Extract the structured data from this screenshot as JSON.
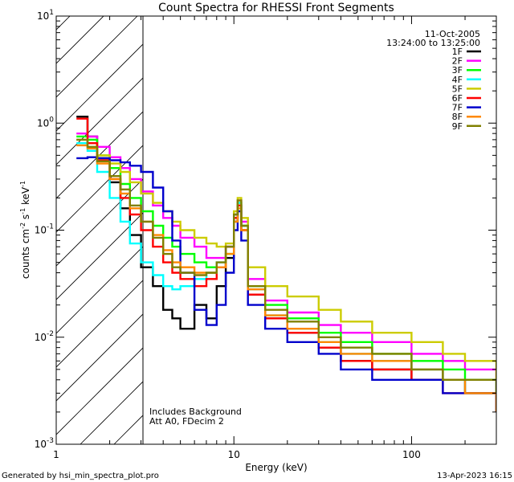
{
  "chart_data": {
    "type": "line",
    "title": "Count Spectra for RHESSI Front Segments",
    "xlabel": "Energy (keV)",
    "ylabel_main": "counts cm",
    "ylabel_exp1": "-2",
    "ylabel_mid": " s",
    "ylabel_exp2": "-1",
    "ylabel_tail": " keV",
    "ylabel_exp3": "-1",
    "xscale": "log",
    "yscale": "log",
    "xlim": [
      1,
      300
    ],
    "ylim": [
      0.001,
      10
    ],
    "xticks": [
      {
        "value": 1,
        "label": "1"
      },
      {
        "value": 10,
        "label": "10"
      },
      {
        "value": 100,
        "label": "100"
      }
    ],
    "yticks": [
      {
        "value": 0.001,
        "base": "10",
        "exp": "-3"
      },
      {
        "value": 0.01,
        "base": "10",
        "exp": "-2"
      },
      {
        "value": 0.1,
        "base": "10",
        "exp": "-1"
      },
      {
        "value": 1,
        "base": "10",
        "exp": "0"
      },
      {
        "value": 10,
        "base": "10",
        "exp": "1"
      }
    ],
    "shaded_region": {
      "x_from": 1,
      "x_to": 3,
      "style": "hatched"
    },
    "date": "11-Oct-2005",
    "time_range": "13:24:00 to 13:25:00",
    "annotations": [
      "Includes Background",
      "Att A0, FDecim 2"
    ],
    "footer_left": "Generated by hsi_min_spectra_plot.pro",
    "footer_right": "13-Apr-2023 16:15",
    "legend_position": "top-right",
    "series": [
      {
        "name": "1F",
        "color": "#000000",
        "values": [
          [
            1.3,
            1.15
          ],
          [
            1.5,
            0.75
          ],
          [
            1.7,
            0.47
          ],
          [
            2.0,
            0.28
          ],
          [
            2.3,
            0.16
          ],
          [
            2.6,
            0.09
          ],
          [
            3.0,
            0.045
          ],
          [
            3.5,
            0.03
          ],
          [
            4.0,
            0.018
          ],
          [
            4.5,
            0.015
          ],
          [
            5.0,
            0.012
          ],
          [
            6.0,
            0.02
          ],
          [
            7.0,
            0.015
          ],
          [
            8.0,
            0.03
          ],
          [
            9.0,
            0.055
          ],
          [
            10.0,
            0.12
          ],
          [
            10.5,
            0.17
          ],
          [
            11.0,
            0.1
          ],
          [
            12.0,
            0.025
          ],
          [
            15,
            0.015
          ],
          [
            20,
            0.011
          ],
          [
            30,
            0.008
          ],
          [
            40,
            0.006
          ],
          [
            60,
            0.005
          ],
          [
            100,
            0.004
          ],
          [
            150,
            0.004
          ],
          [
            200,
            0.003
          ],
          [
            300,
            0.002
          ]
        ]
      },
      {
        "name": "2F",
        "color": "#ff00ff",
        "values": [
          [
            1.3,
            0.8
          ],
          [
            1.5,
            0.75
          ],
          [
            1.7,
            0.6
          ],
          [
            2.0,
            0.48
          ],
          [
            2.3,
            0.38
          ],
          [
            2.6,
            0.3
          ],
          [
            3.0,
            0.23
          ],
          [
            3.5,
            0.17
          ],
          [
            4.0,
            0.13
          ],
          [
            4.5,
            0.11
          ],
          [
            5.0,
            0.085
          ],
          [
            6.0,
            0.07
          ],
          [
            7.0,
            0.055
          ],
          [
            8.0,
            0.055
          ],
          [
            9.0,
            0.07
          ],
          [
            10.0,
            0.14
          ],
          [
            10.5,
            0.19
          ],
          [
            11.0,
            0.12
          ],
          [
            12.0,
            0.035
          ],
          [
            15,
            0.022
          ],
          [
            20,
            0.017
          ],
          [
            30,
            0.013
          ],
          [
            40,
            0.011
          ],
          [
            60,
            0.009
          ],
          [
            100,
            0.007
          ],
          [
            150,
            0.006
          ],
          [
            200,
            0.005
          ],
          [
            300,
            0.003
          ]
        ]
      },
      {
        "name": "3F",
        "color": "#00ff00",
        "values": [
          [
            1.3,
            0.75
          ],
          [
            1.5,
            0.7
          ],
          [
            1.7,
            0.5
          ],
          [
            2.0,
            0.38
          ],
          [
            2.3,
            0.27
          ],
          [
            2.6,
            0.2
          ],
          [
            3.0,
            0.15
          ],
          [
            3.5,
            0.11
          ],
          [
            4.0,
            0.085
          ],
          [
            4.5,
            0.07
          ],
          [
            5.0,
            0.06
          ],
          [
            6.0,
            0.05
          ],
          [
            7.0,
            0.045
          ],
          [
            8.0,
            0.045
          ],
          [
            9.0,
            0.06
          ],
          [
            10.0,
            0.13
          ],
          [
            10.5,
            0.18
          ],
          [
            11.0,
            0.11
          ],
          [
            12.0,
            0.03
          ],
          [
            15,
            0.02
          ],
          [
            20,
            0.015
          ],
          [
            30,
            0.011
          ],
          [
            40,
            0.009
          ],
          [
            60,
            0.007
          ],
          [
            100,
            0.006
          ],
          [
            150,
            0.005
          ],
          [
            200,
            0.004
          ],
          [
            300,
            0.003
          ]
        ]
      },
      {
        "name": "4F",
        "color": "#00ffff",
        "values": [
          [
            1.3,
            0.65
          ],
          [
            1.5,
            0.55
          ],
          [
            1.7,
            0.35
          ],
          [
            2.0,
            0.2
          ],
          [
            2.3,
            0.12
          ],
          [
            2.6,
            0.075
          ],
          [
            3.0,
            0.05
          ],
          [
            3.5,
            0.038
          ],
          [
            4.0,
            0.03
          ],
          [
            4.5,
            0.028
          ],
          [
            5.0,
            0.03
          ],
          [
            6.0,
            0.035
          ],
          [
            7.0,
            0.04
          ],
          [
            8.0,
            0.05
          ],
          [
            9.0,
            0.07
          ],
          [
            10.0,
            0.14
          ],
          [
            10.5,
            0.18
          ],
          [
            11.0,
            0.11
          ],
          [
            12.0,
            0.028
          ],
          [
            15,
            0.016
          ],
          [
            20,
            0.012
          ],
          [
            30,
            0.009
          ],
          [
            40,
            0.007
          ],
          [
            60,
            0.006
          ],
          [
            100,
            0.005
          ],
          [
            150,
            0.004
          ],
          [
            200,
            0.003
          ],
          [
            300,
            0.002
          ]
        ]
      },
      {
        "name": "5F",
        "color": "#cccc00",
        "values": [
          [
            1.3,
            0.7
          ],
          [
            1.5,
            0.65
          ],
          [
            1.7,
            0.5
          ],
          [
            2.0,
            0.42
          ],
          [
            2.3,
            0.35
          ],
          [
            2.6,
            0.28
          ],
          [
            3.0,
            0.22
          ],
          [
            3.5,
            0.18
          ],
          [
            4.0,
            0.15
          ],
          [
            4.5,
            0.12
          ],
          [
            5.0,
            0.1
          ],
          [
            6.0,
            0.085
          ],
          [
            7.0,
            0.075
          ],
          [
            8.0,
            0.07
          ],
          [
            9.0,
            0.075
          ],
          [
            10.0,
            0.15
          ],
          [
            10.5,
            0.2
          ],
          [
            11.0,
            0.13
          ],
          [
            12.0,
            0.045
          ],
          [
            15,
            0.03
          ],
          [
            20,
            0.024
          ],
          [
            30,
            0.018
          ],
          [
            40,
            0.014
          ],
          [
            60,
            0.011
          ],
          [
            100,
            0.009
          ],
          [
            150,
            0.007
          ],
          [
            200,
            0.006
          ],
          [
            300,
            0.004
          ]
        ]
      },
      {
        "name": "6F",
        "color": "#ff0000",
        "values": [
          [
            1.3,
            1.1
          ],
          [
            1.5,
            0.65
          ],
          [
            1.7,
            0.45
          ],
          [
            2.0,
            0.3
          ],
          [
            2.3,
            0.2
          ],
          [
            2.6,
            0.14
          ],
          [
            3.0,
            0.1
          ],
          [
            3.5,
            0.07
          ],
          [
            4.0,
            0.05
          ],
          [
            4.5,
            0.04
          ],
          [
            5.0,
            0.035
          ],
          [
            6.0,
            0.03
          ],
          [
            7.0,
            0.035
          ],
          [
            8.0,
            0.045
          ],
          [
            9.0,
            0.07
          ],
          [
            10.0,
            0.13
          ],
          [
            10.5,
            0.17
          ],
          [
            11.0,
            0.1
          ],
          [
            12.0,
            0.025
          ],
          [
            15,
            0.015
          ],
          [
            20,
            0.011
          ],
          [
            30,
            0.008
          ],
          [
            40,
            0.006
          ],
          [
            60,
            0.005
          ],
          [
            100,
            0.004
          ],
          [
            150,
            0.003
          ],
          [
            200,
            0.003
          ],
          [
            300,
            0.002
          ]
        ]
      },
      {
        "name": "7F",
        "color": "#0000cc",
        "values": [
          [
            1.3,
            0.47
          ],
          [
            1.5,
            0.48
          ],
          [
            1.7,
            0.47
          ],
          [
            2.0,
            0.45
          ],
          [
            2.3,
            0.43
          ],
          [
            2.6,
            0.4
          ],
          [
            3.0,
            0.35
          ],
          [
            3.5,
            0.25
          ],
          [
            4.0,
            0.15
          ],
          [
            4.5,
            0.08
          ],
          [
            5.0,
            0.04
          ],
          [
            6.0,
            0.018
          ],
          [
            7.0,
            0.013
          ],
          [
            8.0,
            0.02
          ],
          [
            9.0,
            0.04
          ],
          [
            10.0,
            0.1
          ],
          [
            10.5,
            0.15
          ],
          [
            11.0,
            0.08
          ],
          [
            12.0,
            0.02
          ],
          [
            15,
            0.012
          ],
          [
            20,
            0.009
          ],
          [
            30,
            0.007
          ],
          [
            40,
            0.005
          ],
          [
            60,
            0.004
          ],
          [
            100,
            0.004
          ],
          [
            150,
            0.003
          ],
          [
            200,
            0.003
          ],
          [
            300,
            0.002
          ]
        ]
      },
      {
        "name": "8F",
        "color": "#ff8800",
        "values": [
          [
            1.3,
            0.62
          ],
          [
            1.5,
            0.58
          ],
          [
            1.7,
            0.42
          ],
          [
            2.0,
            0.3
          ],
          [
            2.3,
            0.22
          ],
          [
            2.6,
            0.16
          ],
          [
            3.0,
            0.12
          ],
          [
            3.5,
            0.09
          ],
          [
            4.0,
            0.065
          ],
          [
            4.5,
            0.05
          ],
          [
            5.0,
            0.045
          ],
          [
            6.0,
            0.04
          ],
          [
            7.0,
            0.04
          ],
          [
            8.0,
            0.045
          ],
          [
            9.0,
            0.06
          ],
          [
            10.0,
            0.12
          ],
          [
            10.5,
            0.16
          ],
          [
            11.0,
            0.1
          ],
          [
            12.0,
            0.028
          ],
          [
            15,
            0.016
          ],
          [
            20,
            0.012
          ],
          [
            30,
            0.009
          ],
          [
            40,
            0.007
          ],
          [
            60,
            0.006
          ],
          [
            100,
            0.005
          ],
          [
            150,
            0.004
          ],
          [
            200,
            0.003
          ],
          [
            300,
            0.002
          ]
        ]
      },
      {
        "name": "9F",
        "color": "#808000",
        "values": [
          [
            1.3,
            0.7
          ],
          [
            1.5,
            0.6
          ],
          [
            1.7,
            0.44
          ],
          [
            2.0,
            0.32
          ],
          [
            2.3,
            0.24
          ],
          [
            2.6,
            0.17
          ],
          [
            3.0,
            0.12
          ],
          [
            3.5,
            0.085
          ],
          [
            4.0,
            0.06
          ],
          [
            4.5,
            0.045
          ],
          [
            5.0,
            0.04
          ],
          [
            6.0,
            0.038
          ],
          [
            7.0,
            0.04
          ],
          [
            8.0,
            0.05
          ],
          [
            9.0,
            0.07
          ],
          [
            10.0,
            0.14
          ],
          [
            10.5,
            0.19
          ],
          [
            11.0,
            0.11
          ],
          [
            12.0,
            0.03
          ],
          [
            15,
            0.018
          ],
          [
            20,
            0.014
          ],
          [
            30,
            0.01
          ],
          [
            40,
            0.008
          ],
          [
            60,
            0.007
          ],
          [
            100,
            0.005
          ],
          [
            150,
            0.004
          ],
          [
            200,
            0.004
          ],
          [
            300,
            0.003
          ]
        ]
      }
    ]
  }
}
